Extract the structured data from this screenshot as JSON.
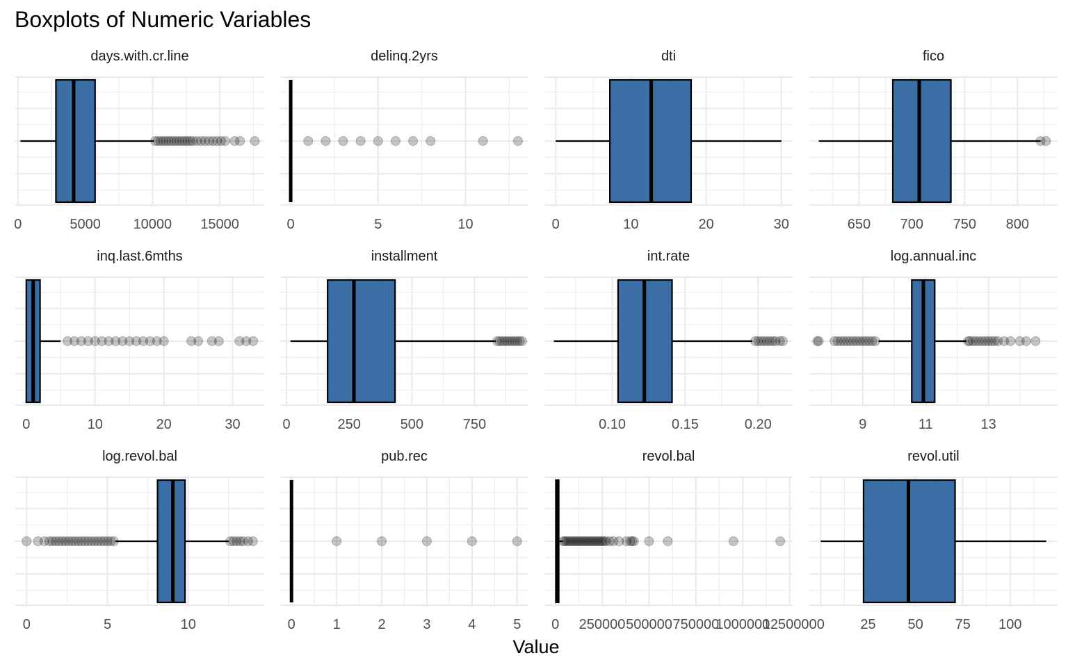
{
  "chart_data": {
    "type": "boxplot",
    "title": "Boxplots of Numeric Variables",
    "xlabel": "Value",
    "ylabel": "",
    "grid": true,
    "colors": {
      "box_fill": "#3A6EA5",
      "stroke": "#000000",
      "grid": "#EBEBEB",
      "outlier": "#000000"
    },
    "panels": [
      {
        "name": "days.with.cr.line",
        "xlim": [
          -200,
          18300
        ],
        "ticks": [
          {
            "v": 0,
            "label": "0"
          },
          {
            "v": 5000,
            "label": "5000"
          },
          {
            "v": 10000,
            "label": "10000"
          },
          {
            "v": 15000,
            "label": "15000"
          }
        ],
        "minors": [
          2500,
          7500,
          12500,
          17500
        ],
        "min": 180,
        "q1": 2820,
        "median": 4140,
        "q3": 5730,
        "whisker_high": 10100,
        "outliers": [
          10200,
          10400,
          10600,
          10800,
          11000,
          11200,
          11400,
          11600,
          11800,
          12000,
          12200,
          12400,
          12600,
          12800,
          13000,
          13300,
          13600,
          13900,
          14200,
          14500,
          14800,
          15100,
          15400,
          16100,
          16500,
          17600
        ]
      },
      {
        "name": "delinq.2yrs",
        "xlim": [
          -0.6,
          13.6
        ],
        "ticks": [
          {
            "v": 0,
            "label": "0"
          },
          {
            "v": 5,
            "label": "5"
          },
          {
            "v": 10,
            "label": "10"
          }
        ],
        "minors": [
          2.5,
          7.5,
          12.5
        ],
        "min": 0,
        "q1": 0,
        "median": 0,
        "q3": 0,
        "whisker_high": 0,
        "outliers": [
          1,
          2,
          3,
          4,
          5,
          6,
          7,
          8,
          11,
          13
        ]
      },
      {
        "name": "dti",
        "xlim": [
          -1.5,
          31.5
        ],
        "ticks": [
          {
            "v": 0,
            "label": "0"
          },
          {
            "v": 10,
            "label": "10"
          },
          {
            "v": 20,
            "label": "20"
          },
          {
            "v": 30,
            "label": "30"
          }
        ],
        "minors": [
          5,
          15,
          25
        ],
        "min": 0,
        "q1": 7.2,
        "median": 12.7,
        "q3": 18,
        "whisker_high": 30,
        "outliers": []
      },
      {
        "name": "fico",
        "xlim": [
          603,
          838
        ],
        "ticks": [
          {
            "v": 650,
            "label": "650"
          },
          {
            "v": 700,
            "label": "700"
          },
          {
            "v": 750,
            "label": "750"
          },
          {
            "v": 800,
            "label": "800"
          }
        ],
        "minors": [
          625,
          675,
          725,
          775,
          825
        ],
        "min": 612,
        "q1": 682,
        "median": 707,
        "q3": 737,
        "whisker_high": 822,
        "outliers": [
          822,
          827
        ]
      },
      {
        "name": "inq.last.6mths",
        "xlim": [
          -1.6,
          34.6
        ],
        "ticks": [
          {
            "v": 0,
            "label": "0"
          },
          {
            "v": 10,
            "label": "10"
          },
          {
            "v": 20,
            "label": "20"
          },
          {
            "v": 30,
            "label": "30"
          }
        ],
        "minors": [
          5,
          15,
          25
        ],
        "min": 0,
        "q1": 0,
        "median": 1,
        "q3": 2,
        "whisker_high": 5,
        "outliers": [
          6,
          7,
          8,
          9,
          10,
          11,
          12,
          13,
          14,
          15,
          16,
          17,
          18,
          19,
          20,
          24,
          25,
          27,
          28,
          31,
          32,
          33
        ]
      },
      {
        "name": "installment",
        "xlim": [
          -25,
          965
        ],
        "ticks": [
          {
            "v": 0,
            "label": "0"
          },
          {
            "v": 250,
            "label": "250"
          },
          {
            "v": 500,
            "label": "500"
          },
          {
            "v": 750,
            "label": "750"
          }
        ],
        "minors": [
          125,
          375,
          625,
          875
        ],
        "min": 16,
        "q1": 164,
        "median": 269,
        "q3": 433,
        "whisker_high": 835,
        "outliers": [
          840,
          850,
          860,
          870,
          880,
          890,
          900,
          910,
          920,
          930,
          940
        ]
      },
      {
        "name": "int.rate",
        "xlim": [
          0.0535,
          0.2237
        ],
        "ticks": [
          {
            "v": 0.1,
            "label": "0.10"
          },
          {
            "v": 0.15,
            "label": "0.15"
          },
          {
            "v": 0.2,
            "label": "0.20"
          }
        ],
        "minors": [
          0.075,
          0.125,
          0.175
        ],
        "min": 0.06,
        "q1": 0.104,
        "median": 0.122,
        "q3": 0.141,
        "whisker_high": 0.196,
        "outliers": [
          0.198,
          0.2,
          0.202,
          0.204,
          0.206,
          0.208,
          0.21,
          0.212,
          0.215,
          0.217
        ]
      },
      {
        "name": "log.annual.inc",
        "xlim": [
          7.3,
          15.2
        ],
        "ticks": [
          {
            "v": 9,
            "label": "9"
          },
          {
            "v": 11,
            "label": "11"
          },
          {
            "v": 13,
            "label": "13"
          }
        ],
        "minors": [
          8,
          10,
          12,
          14
        ],
        "min": 9.5,
        "q1": 10.56,
        "median": 10.93,
        "q3": 11.29,
        "whisker_high": 12.3,
        "outliers": [
          7.55,
          7.6,
          8.1,
          8.2,
          8.3,
          8.4,
          8.5,
          8.6,
          8.7,
          8.8,
          8.9,
          9.0,
          9.1,
          9.2,
          9.3,
          9.4,
          12.35,
          12.4,
          12.5,
          12.6,
          12.7,
          12.8,
          12.9,
          13.0,
          13.1,
          13.2,
          13.3,
          13.5,
          13.7,
          14.0,
          14.2,
          14.5
        ]
      },
      {
        "name": "log.revol.bal",
        "xlim": [
          -0.7,
          14.7
        ],
        "ticks": [
          {
            "v": 0,
            "label": "0"
          },
          {
            "v": 5,
            "label": "5"
          },
          {
            "v": 10,
            "label": "10"
          }
        ],
        "minors": [
          2.5,
          7.5,
          12.5
        ],
        "min": 5.5,
        "q1": 8.1,
        "median": 9.05,
        "q3": 9.8,
        "whisker_high": 12.5,
        "outliers": [
          0,
          0.7,
          1.1,
          1.4,
          1.6,
          1.8,
          2.0,
          2.2,
          2.4,
          2.6,
          2.8,
          3.0,
          3.2,
          3.4,
          3.6,
          3.8,
          4.0,
          4.2,
          4.4,
          4.6,
          4.8,
          5.0,
          5.2,
          5.4,
          12.6,
          12.8,
          13.0,
          13.2,
          13.4,
          13.7,
          14.0
        ]
      },
      {
        "name": "pub.rec",
        "xlim": [
          -0.25,
          5.25
        ],
        "ticks": [
          {
            "v": 0,
            "label": "0"
          },
          {
            "v": 1,
            "label": "1"
          },
          {
            "v": 2,
            "label": "2"
          },
          {
            "v": 3,
            "label": "3"
          },
          {
            "v": 4,
            "label": "4"
          },
          {
            "v": 5,
            "label": "5"
          }
        ],
        "minors": [
          0.5,
          1.5,
          2.5,
          3.5,
          4.5
        ],
        "min": 0,
        "q1": 0,
        "median": 0,
        "q3": 0,
        "whisker_high": 0,
        "outliers": [
          1,
          2,
          3,
          4,
          5
        ]
      },
      {
        "name": "revol.bal",
        "xlim": [
          -58000,
          1266000
        ],
        "ticks": [
          {
            "v": 0,
            "label": "0"
          },
          {
            "v": 250000,
            "label": "250000"
          },
          {
            "v": 500000,
            "label": "500000"
          },
          {
            "v": 750000,
            "label": "750000"
          },
          {
            "v": 1000000,
            "label": "1000000"
          },
          {
            "v": 1250000,
            "label": "1250000"
          }
        ],
        "minors": [
          125000,
          375000,
          625000,
          875000,
          1125000
        ],
        "min": 0,
        "q1": 3200,
        "median": 8600,
        "q3": 18250,
        "whisker_high": 40000,
        "outliers": [
          42000,
          50000,
          60000,
          70000,
          80000,
          90000,
          100000,
          110000,
          120000,
          130000,
          140000,
          150000,
          160000,
          170000,
          180000,
          190000,
          200000,
          210000,
          220000,
          230000,
          240000,
          250000,
          260000,
          270000,
          290000,
          310000,
          340000,
          380000,
          400000,
          410000,
          420000,
          500000,
          600000,
          950000,
          1200000
        ]
      },
      {
        "name": "revol.util",
        "xlim": [
          -6,
          125
        ],
        "ticks": [
          {
            "v": 0,
            "label": "0"
          },
          {
            "v": 25,
            "label": "25"
          },
          {
            "v": 50,
            "label": "50"
          },
          {
            "v": 75,
            "label": "75"
          },
          {
            "v": 100,
            "label": "100"
          }
        ],
        "minors": [
          12.5,
          37.5,
          62.5,
          87.5,
          112.5
        ],
        "min": 0,
        "q1": 22.6,
        "median": 46.3,
        "q3": 70.9,
        "whisker_high": 119,
        "outliers": []
      }
    ]
  }
}
